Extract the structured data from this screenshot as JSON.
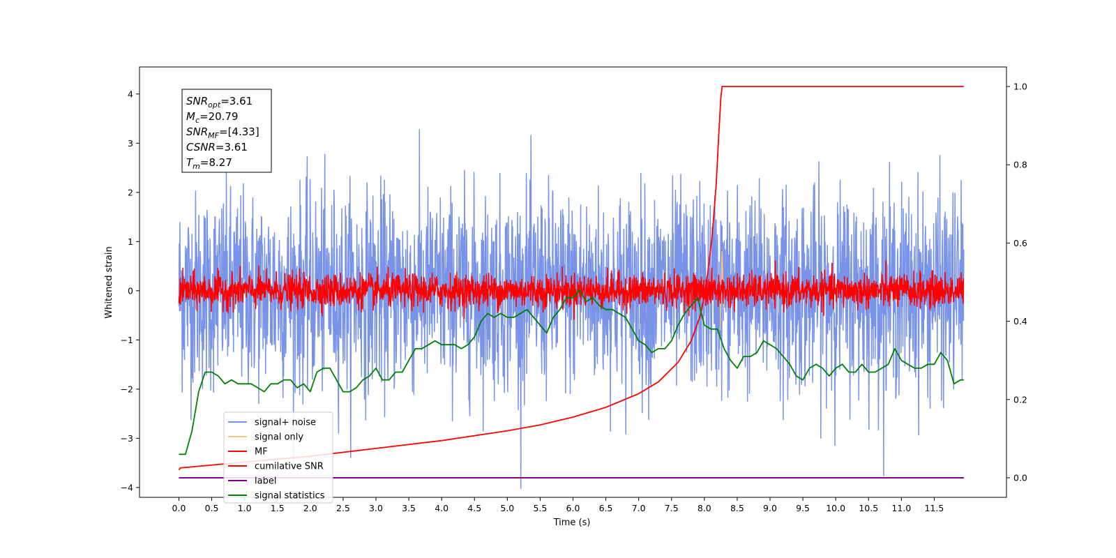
{
  "chart_data": {
    "type": "line",
    "xlabel": "Time (s)",
    "ylabel": "Whitened strain",
    "xlim": [
      -0.6,
      12.6
    ],
    "ylim": [
      -4.2,
      4.55
    ],
    "y2lim": [
      -0.05,
      1.05
    ],
    "xticks": [
      "0.0",
      "0.5",
      "1.0",
      "1.5",
      "2.0",
      "2.5",
      "3.0",
      "3.5",
      "4.0",
      "4.5",
      "5.0",
      "5.5",
      "6.0",
      "6.5",
      "7.0",
      "7.5",
      "8.0",
      "8.5",
      "9.0",
      "9.5",
      "10.0",
      "10.5",
      "11.0",
      "11.5"
    ],
    "xtick_values": [
      0,
      0.5,
      1,
      1.5,
      2,
      2.5,
      3,
      3.5,
      4,
      4.5,
      5,
      5.5,
      6,
      6.5,
      7,
      7.5,
      8,
      8.5,
      9,
      9.5,
      10,
      10.5,
      11,
      11.5
    ],
    "yticks": [
      "4",
      "3",
      "2",
      "1",
      "0",
      "−1",
      "−2",
      "−3",
      "−4"
    ],
    "ytick_values": [
      4,
      3,
      2,
      1,
      0,
      -1,
      -2,
      -3,
      -4
    ],
    "y2ticks": [
      "1.0",
      "0.8",
      "0.6",
      "0.4",
      "0.2",
      "0.0"
    ],
    "y2tick_values": [
      1.0,
      0.8,
      0.6,
      0.4,
      0.2,
      0.0
    ],
    "grid": false,
    "legend_position": "lower-left",
    "legend": [
      "signal+ noise",
      "signal only",
      "MF",
      "cumilative SNR",
      "label",
      "signal statistics"
    ],
    "colors": {
      "signal_noise": "#7893e8",
      "signal_only": "#f5c77e",
      "mf": "#ff0000",
      "cumulative_snr": "#ff0000",
      "label": "#800080",
      "signal_statistics": "#008000"
    },
    "stats_box": [
      {
        "base": "SNR",
        "sub": "opt",
        "value": "=3.61"
      },
      {
        "base": "M",
        "sub": "c",
        "value": "=20.79"
      },
      {
        "base": "SNR",
        "sub": "MF",
        "value": "=[4.33]"
      },
      {
        "base": "CSNR",
        "sub": "",
        "value": "=3.61"
      },
      {
        "base": "T",
        "sub": "m",
        "value": "=8.27"
      }
    ],
    "series": [
      {
        "name": "signal statistics",
        "axis": "right",
        "x": [
          0.0,
          0.1,
          0.2,
          0.3,
          0.4,
          0.5,
          0.6,
          0.7,
          0.8,
          0.9,
          1.0,
          1.1,
          1.2,
          1.3,
          1.4,
          1.5,
          1.6,
          1.7,
          1.8,
          1.9,
          2.0,
          2.1,
          2.2,
          2.3,
          2.4,
          2.5,
          2.6,
          2.7,
          2.8,
          2.9,
          3.0,
          3.1,
          3.2,
          3.3,
          3.4,
          3.5,
          3.6,
          3.7,
          3.8,
          3.9,
          4.0,
          4.1,
          4.2,
          4.3,
          4.4,
          4.5,
          4.6,
          4.7,
          4.8,
          4.9,
          5.0,
          5.1,
          5.2,
          5.3,
          5.4,
          5.5,
          5.6,
          5.7,
          5.8,
          5.9,
          6.0,
          6.1,
          6.2,
          6.3,
          6.4,
          6.5,
          6.6,
          6.7,
          6.8,
          6.9,
          7.0,
          7.1,
          7.2,
          7.3,
          7.4,
          7.5,
          7.6,
          7.7,
          7.8,
          7.9,
          8.0,
          8.1,
          8.2,
          8.3,
          8.4,
          8.5,
          8.6,
          8.7,
          8.8,
          8.9,
          9.0,
          9.1,
          9.2,
          9.3,
          9.4,
          9.5,
          9.6,
          9.7,
          9.8,
          9.9,
          10.0,
          10.1,
          10.2,
          10.3,
          10.4,
          10.5,
          10.6,
          10.7,
          10.8,
          10.9,
          11.0,
          11.1,
          11.2,
          11.3,
          11.4,
          11.5,
          11.6,
          11.7,
          11.8,
          11.9,
          11.95
        ],
        "values": [
          0.06,
          0.06,
          0.12,
          0.22,
          0.27,
          0.27,
          0.26,
          0.24,
          0.25,
          0.24,
          0.24,
          0.24,
          0.23,
          0.22,
          0.24,
          0.24,
          0.25,
          0.25,
          0.23,
          0.24,
          0.22,
          0.27,
          0.28,
          0.28,
          0.25,
          0.22,
          0.22,
          0.23,
          0.25,
          0.26,
          0.28,
          0.25,
          0.25,
          0.27,
          0.27,
          0.3,
          0.33,
          0.33,
          0.34,
          0.35,
          0.34,
          0.34,
          0.34,
          0.33,
          0.34,
          0.36,
          0.4,
          0.42,
          0.41,
          0.42,
          0.41,
          0.41,
          0.42,
          0.43,
          0.41,
          0.39,
          0.37,
          0.41,
          0.43,
          0.46,
          0.46,
          0.48,
          0.45,
          0.46,
          0.44,
          0.43,
          0.43,
          0.42,
          0.41,
          0.38,
          0.35,
          0.34,
          0.32,
          0.33,
          0.33,
          0.35,
          0.39,
          0.42,
          0.44,
          0.46,
          0.39,
          0.38,
          0.38,
          0.33,
          0.3,
          0.28,
          0.31,
          0.31,
          0.32,
          0.35,
          0.34,
          0.33,
          0.31,
          0.29,
          0.26,
          0.25,
          0.28,
          0.29,
          0.28,
          0.26,
          0.28,
          0.29,
          0.27,
          0.27,
          0.29,
          0.27,
          0.27,
          0.28,
          0.29,
          0.33,
          0.3,
          0.29,
          0.28,
          0.28,
          0.29,
          0.29,
          0.32,
          0.3,
          0.24,
          0.25,
          0.25
        ]
      },
      {
        "name": "cumilative SNR",
        "axis": "right",
        "x": [
          0.0,
          0.02,
          1.0,
          2.0,
          3.0,
          4.0,
          5.0,
          5.5,
          6.0,
          6.5,
          7.0,
          7.3,
          7.6,
          7.8,
          7.95,
          8.05,
          8.12,
          8.18,
          8.22,
          8.25,
          8.27,
          8.28,
          11.95
        ],
        "values": [
          0.02,
          0.025,
          0.04,
          0.055,
          0.075,
          0.095,
          0.12,
          0.135,
          0.155,
          0.18,
          0.215,
          0.245,
          0.295,
          0.35,
          0.42,
          0.52,
          0.62,
          0.75,
          0.88,
          0.97,
          1.0,
          1.0,
          1.0
        ]
      },
      {
        "name": "label",
        "axis": "right",
        "x": [
          0.0,
          11.95
        ],
        "values": [
          0.0,
          0.0
        ]
      },
      {
        "name": "signal+ noise",
        "axis": "left",
        "x_range": [
          0.0,
          11.95
        ],
        "amplitude_sigma": 1.0
      },
      {
        "name": "MF",
        "axis": "left",
        "x_range": [
          0.0,
          11.95
        ],
        "amplitude_sigma": 0.17
      },
      {
        "name": "signal only",
        "axis": "left",
        "x": [
          8.24,
          8.27,
          8.28,
          8.3
        ],
        "values": [
          -0.8,
          0.8,
          0.3,
          -0.4
        ]
      }
    ]
  }
}
